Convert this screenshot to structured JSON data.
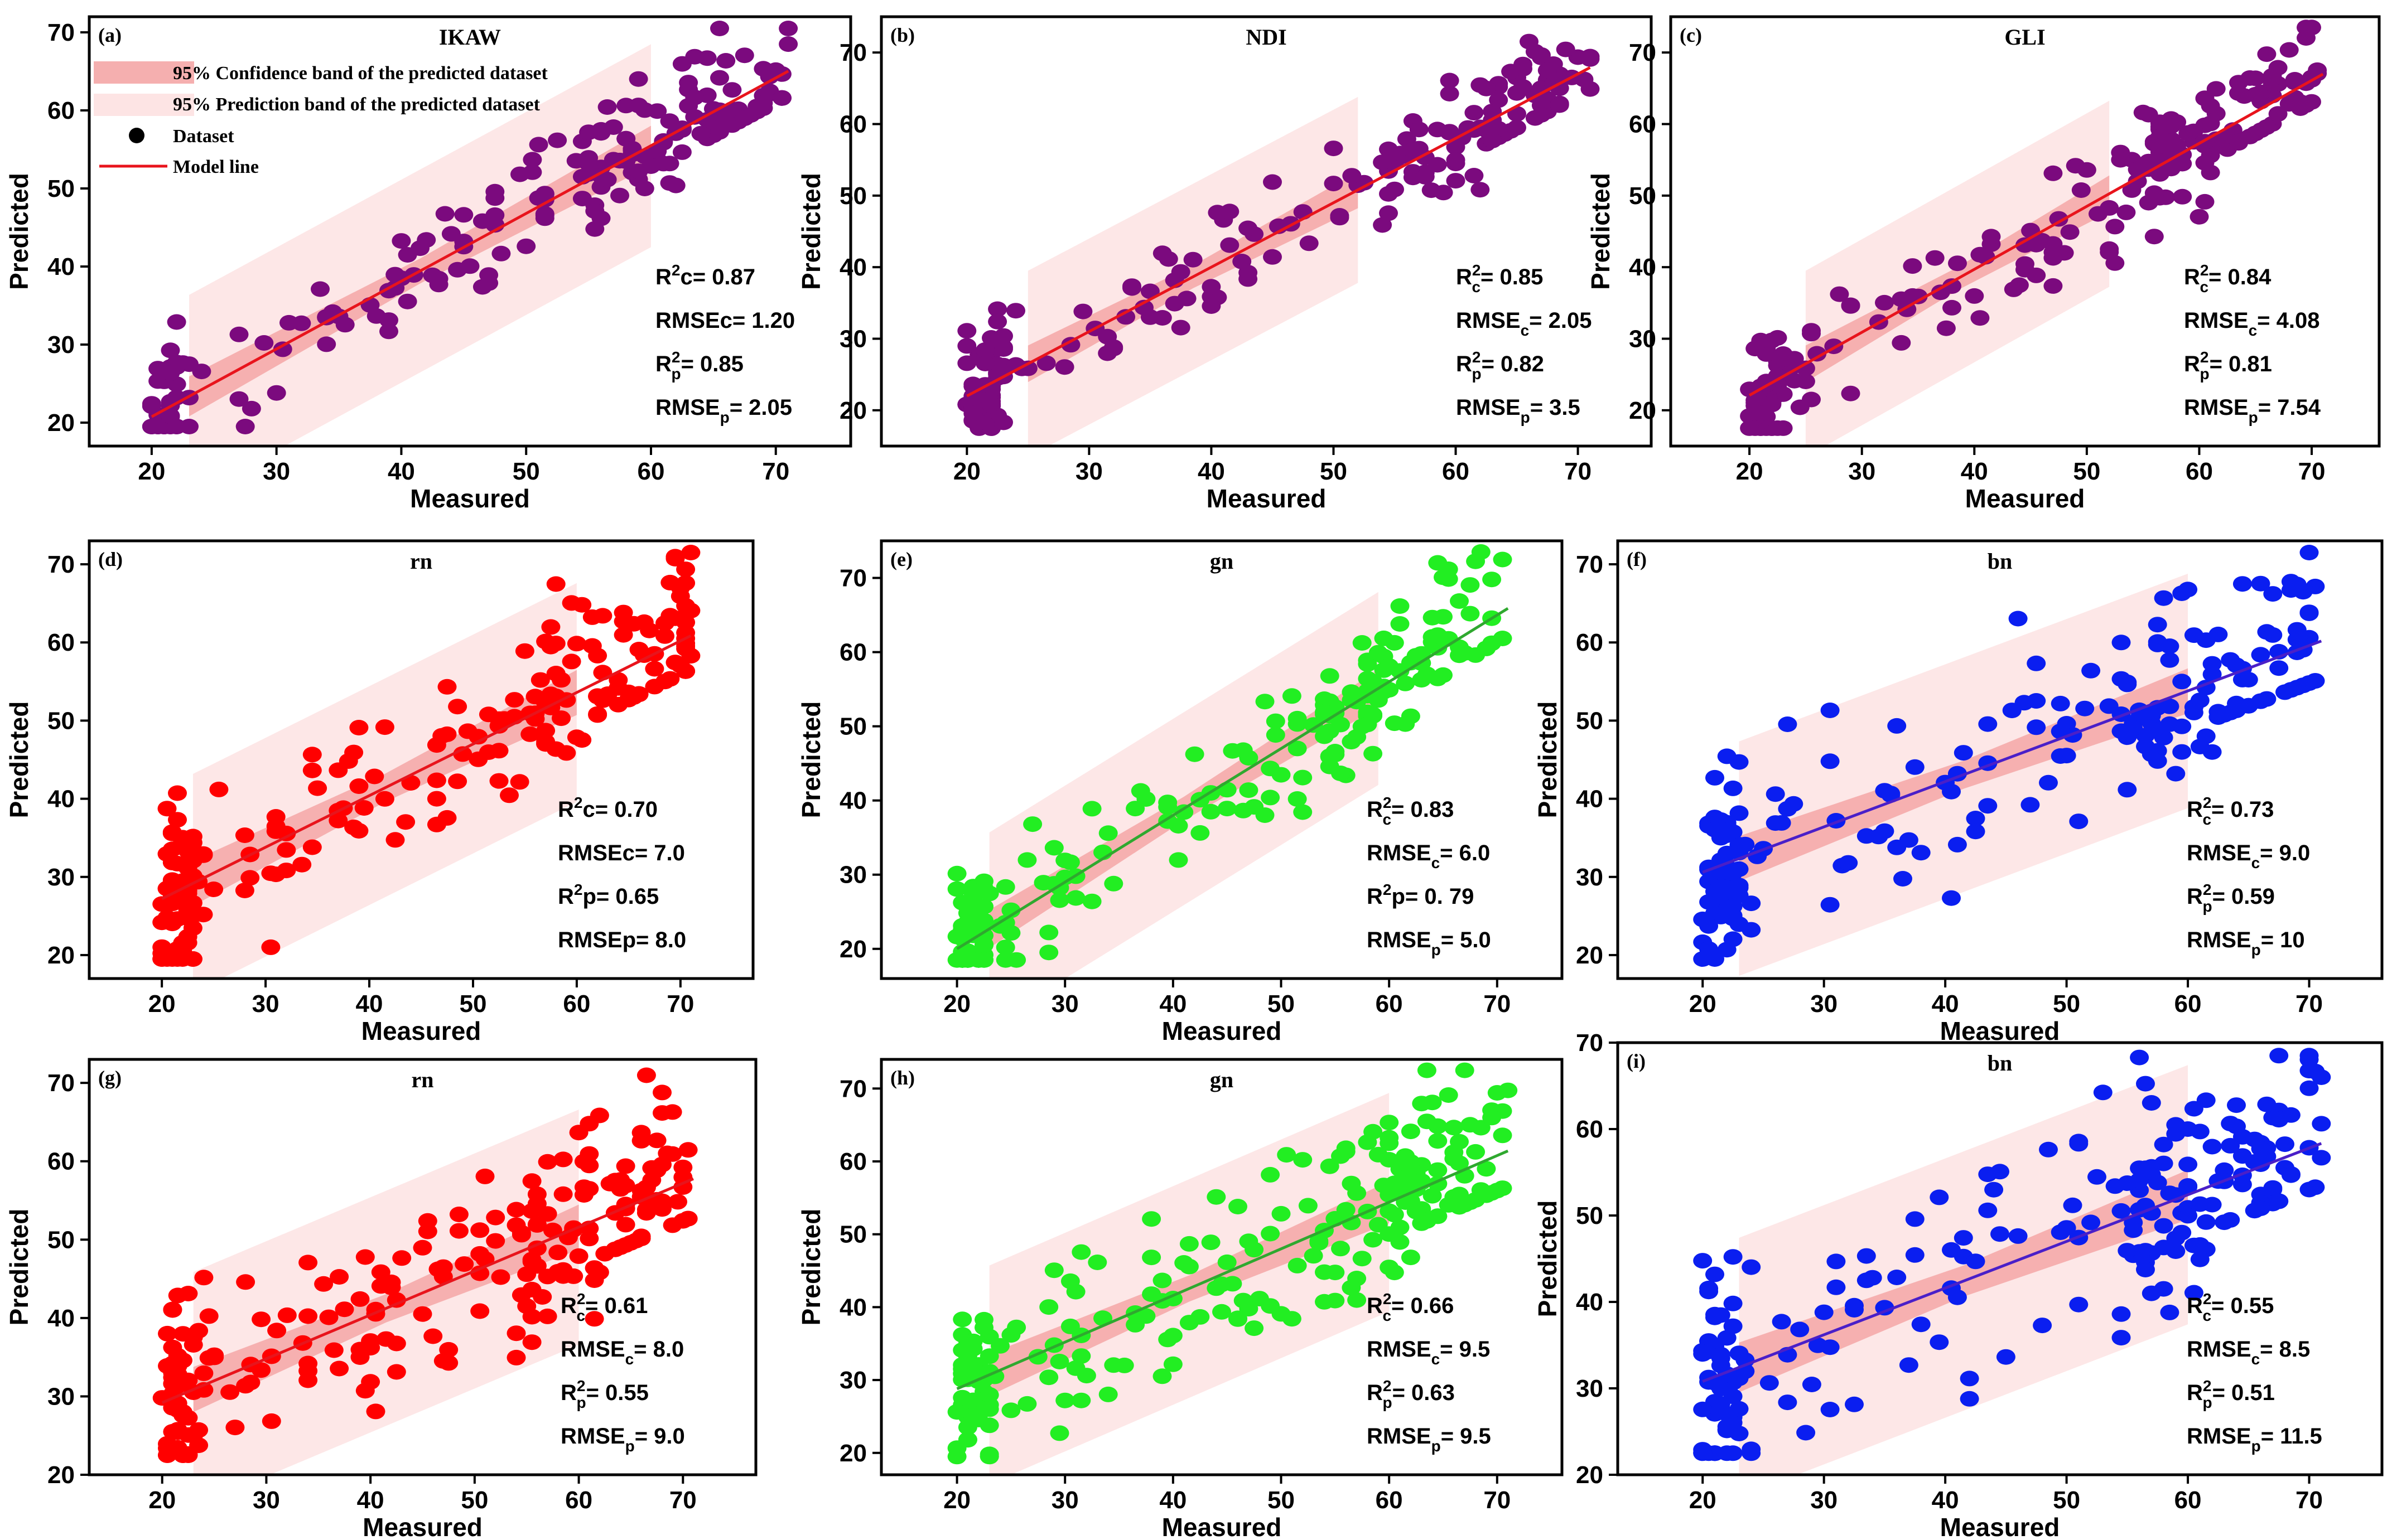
{
  "legend": {
    "confidence": "95% Confidence band of the predicted dataset",
    "prediction": "95% Prediction band of the predicted dataset",
    "dataset": "Dataset",
    "model": "Model line"
  },
  "colors": {
    "band_prediction": "#fde4e4",
    "band_confidence": "#f4a6a6",
    "model_line_default": "#e8141c"
  },
  "chart_data": [
    {
      "id": "a",
      "label": "(a)",
      "title": "IKAW",
      "type": "scatter",
      "xlabel": "Measured",
      "ylabel": "Predicted",
      "xlim": [
        15,
        76
      ],
      "ylim": [
        17,
        72
      ],
      "xticks": [
        20,
        30,
        40,
        50,
        60,
        70
      ],
      "yticks": [
        20,
        30,
        40,
        50,
        60,
        70
      ],
      "color": "#7b0a7e",
      "line_color": "#e8141c",
      "seed": 11,
      "n": 210,
      "fit_intercept": 3.4,
      "fit_slope": 0.868,
      "noise": 5,
      "line_x": [
        20,
        71
      ],
      "band_x": [
        23,
        60
      ],
      "pred_halfwidth": 13,
      "conf_halfwidth": 1.6,
      "stats_pos": "right",
      "stats": [
        {
          "base": "R",
          "sup": "2",
          "sub": "",
          "suffix": "c= 0.87"
        },
        {
          "base": "RMSEc= 1.20",
          "sup": "",
          "sub": "",
          "suffix": ""
        },
        {
          "base": "R",
          "sup": "2",
          "sub": "p",
          "suffix": "= 0.85"
        },
        {
          "base": "RMSE",
          "sup": "",
          "sub": "p",
          "suffix": "= 2.05"
        }
      ]
    },
    {
      "id": "b",
      "label": "(b)",
      "title": "NDI",
      "type": "scatter",
      "xlabel": "Measured",
      "ylabel": "Predicted",
      "xlim": [
        13,
        76
      ],
      "ylim": [
        15,
        75
      ],
      "xticks": [
        20,
        30,
        40,
        50,
        60,
        70
      ],
      "yticks": [
        20,
        30,
        40,
        50,
        60,
        70
      ],
      "color": "#7b0a7e",
      "line_color": "#e8141c",
      "seed": 23,
      "n": 210,
      "fit_intercept": 4,
      "fit_slope": 0.9,
      "noise": 5,
      "line_x": [
        20,
        71
      ],
      "band_x": [
        25,
        52
      ],
      "pred_halfwidth": 13,
      "conf_halfwidth": 1.6,
      "stats_pos": "right",
      "stats": [
        {
          "base": "R",
          "sup": "2",
          "sub": "c",
          "suffix": "= 0.85"
        },
        {
          "base": "RMSE",
          "sup": "",
          "sub": "c",
          "suffix": "= 2.05"
        },
        {
          "base": "R",
          "sup": "2",
          "sub": "p",
          "suffix": "= 0.82"
        },
        {
          "base": "RMSE",
          "sup": "",
          "sub": "p",
          "suffix": "= 3.5"
        }
      ]
    },
    {
      "id": "c",
      "label": "(c)",
      "title": "GLI",
      "type": "scatter",
      "xlabel": "Measured",
      "ylabel": "Predicted",
      "xlim": [
        13,
        76
      ],
      "ylim": [
        15,
        75
      ],
      "xticks": [
        20,
        30,
        40,
        50,
        60,
        70
      ],
      "yticks": [
        20,
        30,
        40,
        50,
        60,
        70
      ],
      "color": "#7b0a7e",
      "line_color": "#e8141c",
      "seed": 37,
      "n": 220,
      "fit_intercept": 4.5,
      "fit_slope": 0.88,
      "noise": 5,
      "line_x": [
        20,
        71
      ],
      "band_x": [
        25,
        52
      ],
      "pred_halfwidth": 13,
      "conf_halfwidth": 1.6,
      "stats_pos": "right",
      "stats": [
        {
          "base": "R",
          "sup": "2",
          "sub": "c",
          "suffix": "= 0.84"
        },
        {
          "base": "RMSE",
          "sup": "",
          "sub": "c",
          "suffix": "= 4.08"
        },
        {
          "base": "R",
          "sup": "2",
          "sub": "p",
          "suffix": "= 0.81"
        },
        {
          "base": "RMSE",
          "sup": "",
          "sub": "p",
          "suffix": "= 7.54"
        }
      ]
    },
    {
      "id": "d",
      "label": "(d)",
      "title": "rn",
      "type": "scatter",
      "xlabel": "Measured",
      "ylabel": "Predicted",
      "xlim": [
        13,
        77
      ],
      "ylim": [
        17,
        73
      ],
      "xticks": [
        20,
        30,
        40,
        50,
        60,
        70
      ],
      "yticks": [
        20,
        30,
        40,
        50,
        60,
        70
      ],
      "color": "#ff0000",
      "line_color": "#e8141c",
      "seed": 41,
      "n": 220,
      "fit_intercept": 14,
      "fit_slope": 0.66,
      "noise": 7,
      "line_x": [
        20,
        71
      ],
      "band_x": [
        23,
        60
      ],
      "pred_halfwidth": 14,
      "conf_halfwidth": 1.8,
      "stats_pos": "right",
      "stats": [
        {
          "base": "R",
          "sup": "2",
          "sub": "",
          "suffix": "c= 0.70"
        },
        {
          "base": "RMSEc= 7.0",
          "sup": "",
          "sub": "",
          "suffix": ""
        },
        {
          "base": "R",
          "sup": "2",
          "sub": "",
          "suffix": "p= 0.65"
        },
        {
          "base": "RMSEp= 8.0",
          "sup": "",
          "sub": "",
          "suffix": ""
        }
      ]
    },
    {
      "id": "e",
      "label": "(e)",
      "title": "gn",
      "type": "scatter",
      "xlabel": "Measured",
      "ylabel": "Predicted",
      "xlim": [
        13,
        76
      ],
      "ylim": [
        16,
        75
      ],
      "xticks": [
        20,
        30,
        40,
        50,
        60,
        70
      ],
      "yticks": [
        20,
        30,
        40,
        50,
        60,
        70
      ],
      "color": "#22ee22",
      "line_color": "#2fa82f",
      "seed": 53,
      "n": 210,
      "fit_intercept": 2,
      "fit_slope": 0.9,
      "noise": 6,
      "line_x": [
        20,
        71
      ],
      "band_x": [
        23,
        59
      ],
      "pred_halfwidth": 13,
      "conf_halfwidth": 1.6,
      "stats_pos": "right",
      "stats": [
        {
          "base": "R",
          "sup": "2",
          "sub": "c",
          "suffix": "= 0.83"
        },
        {
          "base": "RMSE",
          "sup": "",
          "sub": "c",
          "suffix": "= 6.0"
        },
        {
          "base": "R",
          "sup": "2",
          "sub": "",
          "suffix": "p= 0. 79"
        },
        {
          "base": "RMSE",
          "sup": "",
          "sub": "p",
          "suffix": "= 5.0"
        }
      ]
    },
    {
      "id": "f",
      "label": "(f)",
      "title": "bn",
      "type": "scatter",
      "xlabel": "Measured",
      "ylabel": "Predicted",
      "xlim": [
        13,
        76
      ],
      "ylim": [
        17,
        73
      ],
      "xticks": [
        20,
        30,
        40,
        50,
        60,
        70
      ],
      "yticks": [
        20,
        30,
        40,
        50,
        60,
        70
      ],
      "color": "#0a1ef0",
      "line_color": "#4a1fc8",
      "seed": 67,
      "n": 220,
      "fit_intercept": 19,
      "fit_slope": 0.58,
      "noise": 8,
      "line_x": [
        20,
        71
      ],
      "band_x": [
        23,
        60
      ],
      "pred_halfwidth": 15,
      "conf_halfwidth": 1.8,
      "stats_pos": "right",
      "stats": [
        {
          "base": "R",
          "sup": "2",
          "sub": "c",
          "suffix": "= 0.73"
        },
        {
          "base": "RMSE",
          "sup": "",
          "sub": "c",
          "suffix": "= 9.0"
        },
        {
          "base": "R",
          "sup": "2",
          "sub": "p",
          "suffix": "= 0.59"
        },
        {
          "base": "RMSE",
          "sup": "",
          "sub": "p",
          "suffix": "= 10"
        }
      ]
    },
    {
      "id": "g",
      "label": "(g)",
      "title": "rn",
      "type": "scatter",
      "xlabel": "Measured",
      "ylabel": "Predicted",
      "xlim": [
        13,
        77
      ],
      "ylim": [
        20,
        73
      ],
      "xticks": [
        20,
        30,
        40,
        50,
        60,
        70
      ],
      "yticks": [
        20,
        30,
        40,
        50,
        60,
        70
      ],
      "color": "#ff0000",
      "line_color": "#e8141c",
      "seed": 79,
      "n": 230,
      "fit_intercept": 18,
      "fit_slope": 0.56,
      "noise": 8,
      "line_x": [
        20,
        71
      ],
      "band_x": [
        23,
        60
      ],
      "pred_halfwidth": 15,
      "conf_halfwidth": 1.8,
      "stats_pos": "right",
      "stats": [
        {
          "base": "R",
          "sup": "2",
          "sub": "c",
          "suffix": "= 0.61"
        },
        {
          "base": "RMSE",
          "sup": "",
          "sub": "c",
          "suffix": "= 8.0"
        },
        {
          "base": "R",
          "sup": "2",
          "sub": "p",
          "suffix": "= 0.55"
        },
        {
          "base": "RMSE",
          "sup": "",
          "sub": "p",
          "suffix": "= 9.0"
        }
      ]
    },
    {
      "id": "h",
      "label": "(h)",
      "title": "gn",
      "type": "scatter",
      "xlabel": "Measured",
      "ylabel": "Predicted",
      "xlim": [
        13,
        76
      ],
      "ylim": [
        17,
        74
      ],
      "xticks": [
        20,
        30,
        40,
        50,
        60,
        70
      ],
      "yticks": [
        20,
        30,
        40,
        50,
        60,
        70
      ],
      "color": "#22ee22",
      "line_color": "#2fa82f",
      "seed": 89,
      "n": 230,
      "fit_intercept": 16,
      "fit_slope": 0.64,
      "noise": 8,
      "line_x": [
        20,
        71
      ],
      "band_x": [
        23,
        60
      ],
      "pred_halfwidth": 15,
      "conf_halfwidth": 1.8,
      "stats_pos": "right",
      "stats": [
        {
          "base": "R",
          "sup": "2",
          "sub": "c",
          "suffix": "= 0.66"
        },
        {
          "base": "RMSE",
          "sup": "",
          "sub": "c",
          "suffix": "= 9.5"
        },
        {
          "base": "R",
          "sup": "2",
          "sub": "p",
          "suffix": "= 0.63"
        },
        {
          "base": "RMSE",
          "sup": "",
          "sub": "p",
          "suffix": "= 9.5"
        }
      ]
    },
    {
      "id": "i",
      "label": "(i)",
      "title": "bn",
      "type": "scatter",
      "xlabel": "Measured",
      "ylabel": "Predicted",
      "xlim": [
        13,
        76
      ],
      "ylim": [
        20,
        70
      ],
      "xticks": [
        20,
        30,
        40,
        50,
        60,
        70
      ],
      "yticks": [
        20,
        30,
        40,
        50,
        60,
        70
      ],
      "color": "#0a1ef0",
      "line_color": "#4a1fc8",
      "seed": 97,
      "n": 230,
      "fit_intercept": 20,
      "fit_slope": 0.54,
      "noise": 8,
      "line_x": [
        20,
        71
      ],
      "band_x": [
        23,
        60
      ],
      "pred_halfwidth": 15,
      "conf_halfwidth": 1.8,
      "stats_pos": "right",
      "stats": [
        {
          "base": "R",
          "sup": "2",
          "sub": "c",
          "suffix": "= 0.55"
        },
        {
          "base": "RMSE",
          "sup": "",
          "sub": "c",
          "suffix": "= 8.5"
        },
        {
          "base": "R",
          "sup": "2",
          "sub": "p",
          "suffix": "= 0.51"
        },
        {
          "base": "RMSE",
          "sup": "",
          "sub": "p",
          "suffix": "= 11.5"
        }
      ]
    }
  ]
}
